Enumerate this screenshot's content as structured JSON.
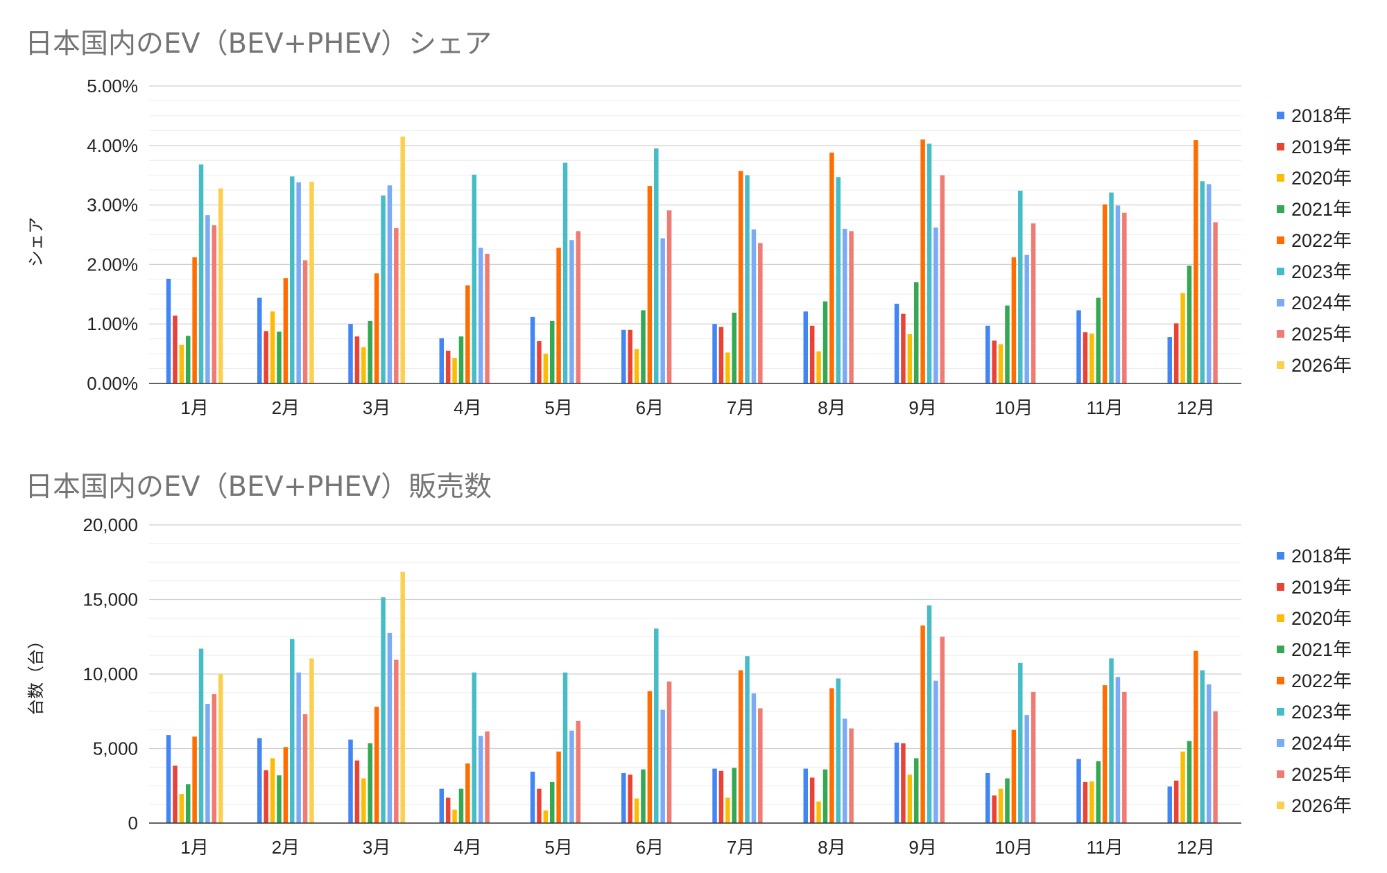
{
  "colors": [
    "#4285F4",
    "#EA4335",
    "#FBBC04",
    "#34A853",
    "#FF6D01",
    "#46BDC6",
    "#7BAAF7",
    "#F07B72",
    "#FCD04F"
  ],
  "chart_data": [
    {
      "type": "bar",
      "title": "日本国内のEV（BEV+PHEV）シェア",
      "xlabel": "",
      "ylabel": "シェア",
      "categories": [
        "1月",
        "2月",
        "3月",
        "4月",
        "5月",
        "6月",
        "7月",
        "8月",
        "9月",
        "10月",
        "11月",
        "12月"
      ],
      "ylim": [
        0,
        5
      ],
      "yticks": [
        "0.00%",
        "1.00%",
        "2.00%",
        "3.00%",
        "4.00%",
        "5.00%"
      ],
      "grid": true,
      "legend": "right",
      "series": [
        {
          "name": "2018年",
          "values": [
            1.76,
            1.44,
            1.0,
            0.76,
            1.12,
            0.9,
            1.0,
            1.21,
            1.34,
            0.97,
            1.23,
            0.78
          ]
        },
        {
          "name": "2019年",
          "values": [
            1.14,
            0.88,
            0.79,
            0.55,
            0.71,
            0.9,
            0.95,
            0.97,
            1.17,
            0.72,
            0.86,
            1.01
          ]
        },
        {
          "name": "2020年",
          "values": [
            0.65,
            1.21,
            0.61,
            0.43,
            0.5,
            0.58,
            0.52,
            0.54,
            0.83,
            0.66,
            0.84,
            1.52
          ]
        },
        {
          "name": "2021年",
          "values": [
            0.8,
            0.87,
            1.05,
            0.79,
            1.05,
            1.23,
            1.19,
            1.38,
            1.7,
            1.31,
            1.44,
            1.98
          ]
        },
        {
          "name": "2022年",
          "values": [
            2.12,
            1.77,
            1.85,
            1.65,
            2.28,
            3.32,
            3.57,
            3.88,
            4.1,
            2.12,
            3.01,
            4.09
          ]
        },
        {
          "name": "2023年",
          "values": [
            3.68,
            3.48,
            3.16,
            3.51,
            3.71,
            3.95,
            3.5,
            3.47,
            4.03,
            3.24,
            3.21,
            3.4
          ]
        },
        {
          "name": "2024年",
          "values": [
            2.83,
            3.38,
            3.33,
            2.28,
            2.41,
            2.44,
            2.59,
            2.6,
            2.62,
            2.16,
            2.99,
            3.35
          ]
        },
        {
          "name": "2025年",
          "values": [
            2.66,
            2.07,
            2.61,
            2.18,
            2.56,
            2.91,
            2.36,
            2.56,
            3.5,
            2.69,
            2.87,
            2.71
          ]
        },
        {
          "name": "2026年",
          "values": [
            3.28,
            3.39,
            4.15,
            null,
            null,
            null,
            null,
            null,
            null,
            null,
            null,
            null
          ]
        }
      ]
    },
    {
      "type": "bar",
      "title": "日本国内のEV（BEV+PHEV）販売数",
      "xlabel": "",
      "ylabel": "台数（台）",
      "categories": [
        "1月",
        "2月",
        "3月",
        "4月",
        "5月",
        "6月",
        "7月",
        "8月",
        "9月",
        "10月",
        "11月",
        "12月"
      ],
      "ylim": [
        0,
        20000
      ],
      "yticks": [
        "0",
        "5,000",
        "10,000",
        "15,000",
        "20,000"
      ],
      "grid": true,
      "legend": "right",
      "series": [
        {
          "name": "2018年",
          "values": [
            5900,
            5700,
            5600,
            2300,
            3450,
            3350,
            3650,
            3650,
            5400,
            3350,
            4300,
            2450
          ]
        },
        {
          "name": "2019年",
          "values": [
            3850,
            3550,
            4200,
            1700,
            2300,
            3250,
            3500,
            3050,
            5350,
            1850,
            2750,
            2850
          ]
        },
        {
          "name": "2020年",
          "values": [
            1950,
            4350,
            3000,
            900,
            850,
            1650,
            1700,
            1450,
            3250,
            2300,
            2800,
            4800
          ]
        },
        {
          "name": "2021年",
          "values": [
            2600,
            3200,
            5350,
            2300,
            2750,
            3600,
            3700,
            3600,
            4350,
            3000,
            4150,
            5500
          ]
        },
        {
          "name": "2022年",
          "values": [
            5800,
            5100,
            7800,
            4000,
            4800,
            8850,
            10250,
            9050,
            13250,
            6250,
            9250,
            11550
          ]
        },
        {
          "name": "2023年",
          "values": [
            11700,
            12350,
            15150,
            10100,
            10100,
            13050,
            11200,
            9700,
            14600,
            10750,
            11050,
            10250
          ]
        },
        {
          "name": "2024年",
          "values": [
            8000,
            10100,
            12750,
            5850,
            6200,
            7600,
            8700,
            7000,
            9550,
            7250,
            9800,
            9300
          ]
        },
        {
          "name": "2025年",
          "values": [
            8650,
            7300,
            10950,
            6150,
            6850,
            9500,
            7700,
            6350,
            12500,
            8800,
            8800,
            7500
          ]
        },
        {
          "name": "2026年",
          "values": [
            10000,
            11050,
            16850,
            null,
            null,
            null,
            null,
            null,
            null,
            null,
            null,
            null
          ]
        }
      ]
    }
  ]
}
